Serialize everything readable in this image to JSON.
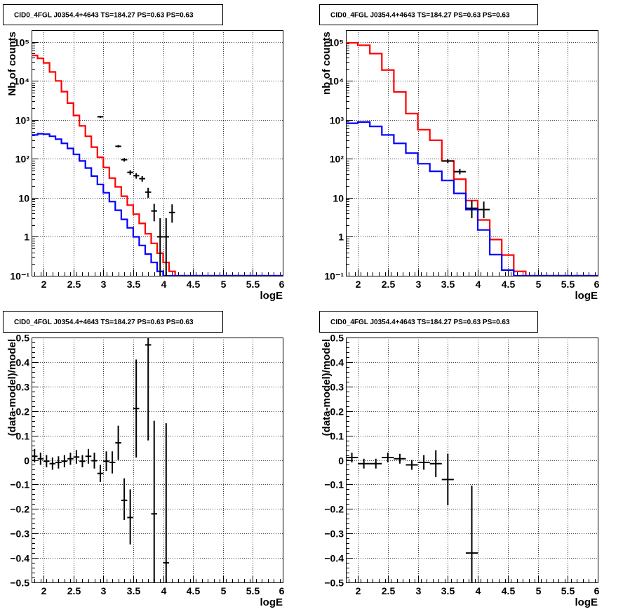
{
  "colors": {
    "data": "#000000",
    "total_model": "#ff0000",
    "component_model": "#0000ff",
    "grid": "#000000"
  },
  "chart_data": [
    {
      "id": "p1",
      "type": "line",
      "title": "CID0_4FGL J0354.4+4643 TS=184.27 PS=0.63 PS=0.63",
      "xlabel": "logE",
      "ylabel": "Nb of counts",
      "yscale": "log",
      "xlim": [
        1.8,
        6.0
      ],
      "ylim": [
        0.1,
        200000
      ],
      "grid": true,
      "x_ticks": [
        2,
        2.5,
        3,
        3.5,
        4,
        4.5,
        5,
        5.5,
        6
      ],
      "x_tick_labels": [
        "2",
        "2.5",
        "3",
        "3.5",
        "4",
        "4.5",
        "5",
        "5.5",
        "6"
      ],
      "y_ticks": [
        0.1,
        1,
        10,
        100,
        1000,
        10000,
        100000
      ],
      "y_tick_labels": [
        "10⁻¹",
        "1",
        "10",
        "10²",
        "10³",
        "10⁴",
        "10⁵"
      ],
      "series": [
        {
          "role": "total_model",
          "style": "step",
          "edges": [
            1.8,
            1.9,
            2.0,
            2.1,
            2.2,
            2.3,
            2.4,
            2.5,
            2.6,
            2.7,
            2.8,
            2.9,
            3.0,
            3.1,
            3.2,
            3.3,
            3.4,
            3.5,
            3.6,
            3.7,
            3.8,
            3.9,
            4.0,
            4.1,
            4.2,
            4.3,
            4.4,
            4.5,
            4.6,
            6.0
          ],
          "values": [
            45000,
            38000,
            29000,
            17000,
            10000,
            5300,
            2700,
            1300,
            700,
            380,
            200,
            110,
            60,
            32,
            19,
            11,
            6.5,
            3.8,
            2.2,
            1.2,
            0.68,
            0.38,
            0.22,
            0.13,
            0.1,
            0.1,
            0.1,
            0.1,
            0.1
          ]
        },
        {
          "role": "component_model",
          "style": "step",
          "edges": [
            1.8,
            1.9,
            2.0,
            2.1,
            2.2,
            2.3,
            2.4,
            2.5,
            2.6,
            2.7,
            2.8,
            2.9,
            3.0,
            3.1,
            3.2,
            3.3,
            3.4,
            3.5,
            3.6,
            3.7,
            3.8,
            3.9,
            4.0,
            4.1,
            4.2,
            4.3,
            4.4,
            4.5,
            4.6,
            6.0
          ],
          "values": [
            410,
            440,
            430,
            380,
            320,
            250,
            185,
            130,
            88,
            58,
            36,
            22,
            13.5,
            8,
            4.8,
            2.8,
            1.7,
            1.0,
            0.6,
            0.36,
            0.22,
            0.13,
            0.1,
            0.1,
            0.1,
            0.1,
            0.1,
            0.1,
            0.1
          ]
        },
        {
          "role": "data",
          "style": "errorbar",
          "points": [
            {
              "x": 2.95,
              "y": 1200,
              "xerr": 0.05,
              "ylo": 1130,
              "yhi": 1270
            },
            {
              "x": 3.25,
              "y": 210,
              "xerr": 0.05,
              "ylo": 195,
              "yhi": 225
            },
            {
              "x": 3.35,
              "y": 95,
              "xerr": 0.05,
              "ylo": 85,
              "yhi": 105
            },
            {
              "x": 3.45,
              "y": 45,
              "xerr": 0.05,
              "ylo": 39,
              "yhi": 51
            },
            {
              "x": 3.55,
              "y": 37,
              "xerr": 0.05,
              "ylo": 31,
              "yhi": 43
            },
            {
              "x": 3.65,
              "y": 31,
              "xerr": 0.05,
              "ylo": 26,
              "yhi": 36
            },
            {
              "x": 3.75,
              "y": 14,
              "xerr": 0.05,
              "ylo": 10,
              "yhi": 18
            },
            {
              "x": 3.85,
              "y": 4.6,
              "xerr": 0.05,
              "ylo": 2.5,
              "yhi": 7
            },
            {
              "x": 3.95,
              "y": 1,
              "xerr": 0.05,
              "ylo": 0.1,
              "yhi": 3
            },
            {
              "x": 4.05,
              "y": 1,
              "xerr": 0.05,
              "ylo": 0.1,
              "yhi": 3
            },
            {
              "x": 4.15,
              "y": 4.2,
              "xerr": 0.05,
              "ylo": 2.3,
              "yhi": 6.8
            }
          ]
        }
      ]
    },
    {
      "id": "p2",
      "type": "line",
      "title": "CID0_4FGL J0354.4+4643 TS=184.27 PS=0.63 PS=0.63",
      "xlabel": "logE",
      "ylabel": "nb of counts",
      "yscale": "log",
      "xlim": [
        1.8,
        6.0
      ],
      "ylim": [
        0.1,
        200000
      ],
      "grid": true,
      "x_ticks": [
        2,
        2.5,
        3,
        3.5,
        4,
        4.5,
        5,
        5.5,
        6
      ],
      "x_tick_labels": [
        "2",
        "2.5",
        "3",
        "3.5",
        "4",
        "4.5",
        "5",
        "5.5",
        "6"
      ],
      "y_ticks": [
        0.1,
        1,
        10,
        100,
        1000,
        10000,
        100000
      ],
      "y_tick_labels": [
        "10⁻¹",
        "1",
        "10",
        "10²",
        "10³",
        "10⁴",
        "10⁵"
      ],
      "series": [
        {
          "role": "total_model",
          "style": "step",
          "edges": [
            1.8,
            2.0,
            2.2,
            2.4,
            2.6,
            2.8,
            3.0,
            3.2,
            3.4,
            3.6,
            3.8,
            4.0,
            4.2,
            4.4,
            4.6,
            4.8,
            6.0
          ],
          "values": [
            95000,
            82000,
            50000,
            19000,
            5200,
            1450,
            560,
            300,
            88,
            30,
            8.5,
            2.7,
            0.85,
            0.34,
            0.13,
            0.1
          ],
          "end_at": 4.8
        },
        {
          "role": "component_model",
          "style": "step",
          "edges": [
            1.8,
            2.0,
            2.2,
            2.4,
            2.6,
            2.8,
            3.0,
            3.2,
            3.4,
            3.6,
            3.8,
            4.0,
            4.2,
            4.4,
            4.6,
            6.0
          ],
          "values": [
            820,
            880,
            680,
            410,
            250,
            140,
            75,
            48,
            28,
            13,
            5,
            1.5,
            0.35,
            0.14,
            0.1
          ]
        },
        {
          "role": "data",
          "style": "errorbar",
          "points": [
            {
              "x": 3.5,
              "y": 88,
              "xerr": 0.1,
              "ylo": 78,
              "yhi": 98
            },
            {
              "x": 3.7,
              "y": 47,
              "xerr": 0.1,
              "ylo": 40,
              "yhi": 55
            },
            {
              "x": 3.9,
              "y": 5.4,
              "xerr": 0.1,
              "ylo": 3,
              "yhi": 8.5
            },
            {
              "x": 4.1,
              "y": 5,
              "xerr": 0.1,
              "ylo": 3,
              "yhi": 8
            }
          ]
        }
      ]
    },
    {
      "id": "p3",
      "type": "scatter",
      "title": "CID0_4FGL J0354.4+4643 TS=184.27 PS=0.63 PS=0.63",
      "xlabel": "logE",
      "ylabel": "(data-model)/model",
      "yscale": "linear",
      "xlim": [
        1.8,
        6.0
      ],
      "ylim": [
        -0.5,
        0.5
      ],
      "grid": true,
      "x_ticks": [
        2,
        2.5,
        3,
        3.5,
        4,
        4.5,
        5,
        5.5,
        6
      ],
      "x_tick_labels": [
        "2",
        "2.5",
        "3",
        "3.5",
        "4",
        "4.5",
        "5",
        "5.5",
        "6"
      ],
      "y_ticks": [
        -0.5,
        -0.4,
        -0.3,
        -0.2,
        -0.1,
        0,
        0.1,
        0.2,
        0.3,
        0.4,
        0.5
      ],
      "y_tick_labels": [
        "−0.5",
        "−0.4",
        "−0.3",
        "−0.2",
        "−0.1",
        "0",
        "0.1",
        "0.2",
        "0.3",
        "0.4",
        "0.5"
      ],
      "series": [
        {
          "role": "data",
          "style": "errorbar",
          "points": [
            {
              "x": 1.85,
              "y": 0.015,
              "xerr": 0.05,
              "ylo": -0.01,
              "yhi": 0.045
            },
            {
              "x": 1.95,
              "y": 0.005,
              "xerr": 0.05,
              "ylo": -0.02,
              "yhi": 0.03
            },
            {
              "x": 2.05,
              "y": -0.005,
              "xerr": 0.05,
              "ylo": -0.03,
              "yhi": 0.02
            },
            {
              "x": 2.15,
              "y": -0.015,
              "xerr": 0.05,
              "ylo": -0.04,
              "yhi": 0.01
            },
            {
              "x": 2.25,
              "y": -0.01,
              "xerr": 0.05,
              "ylo": -0.035,
              "yhi": 0.015
            },
            {
              "x": 2.35,
              "y": -0.005,
              "xerr": 0.05,
              "ylo": -0.03,
              "yhi": 0.02
            },
            {
              "x": 2.45,
              "y": 0.005,
              "xerr": 0.05,
              "ylo": -0.02,
              "yhi": 0.03
            },
            {
              "x": 2.55,
              "y": 0.012,
              "xerr": 0.05,
              "ylo": -0.015,
              "yhi": 0.04
            },
            {
              "x": 2.65,
              "y": -0.005,
              "xerr": 0.05,
              "ylo": -0.03,
              "yhi": 0.02
            },
            {
              "x": 2.75,
              "y": 0.015,
              "xerr": 0.05,
              "ylo": -0.015,
              "yhi": 0.045
            },
            {
              "x": 2.85,
              "y": -0.003,
              "xerr": 0.05,
              "ylo": -0.035,
              "yhi": 0.03
            },
            {
              "x": 2.95,
              "y": -0.055,
              "xerr": 0.05,
              "ylo": -0.09,
              "yhi": -0.02
            },
            {
              "x": 3.05,
              "y": -0.005,
              "xerr": 0.05,
              "ylo": -0.045,
              "yhi": 0.035
            },
            {
              "x": 3.15,
              "y": -0.01,
              "xerr": 0.05,
              "ylo": -0.055,
              "yhi": 0.035
            },
            {
              "x": 3.25,
              "y": 0.07,
              "xerr": 0.05,
              "ylo": 0.0,
              "yhi": 0.14
            },
            {
              "x": 3.35,
              "y": -0.165,
              "xerr": 0.05,
              "ylo": -0.245,
              "yhi": -0.075
            },
            {
              "x": 3.45,
              "y": -0.235,
              "xerr": 0.05,
              "ylo": -0.345,
              "yhi": -0.12
            },
            {
              "x": 3.55,
              "y": 0.21,
              "xerr": 0.05,
              "ylo": 0.01,
              "yhi": 0.41
            },
            {
              "x": 3.75,
              "y": 0.47,
              "xerr": 0.05,
              "ylo": 0.08,
              "yhi": 0.5
            },
            {
              "x": 3.85,
              "y": -0.22,
              "xerr": 0.05,
              "ylo": -0.5,
              "yhi": 0.16
            },
            {
              "x": 4.05,
              "y": -0.42,
              "xerr": 0.05,
              "ylo": -0.5,
              "yhi": 0.15
            }
          ]
        }
      ]
    },
    {
      "id": "p4",
      "type": "scatter",
      "title": "CID0_4FGL J0354.4+4643 TS=184.27 PS=0.63 PS=0.63",
      "xlabel": "logE",
      "ylabel": "(data-model)/model",
      "yscale": "linear",
      "xlim": [
        1.8,
        6.0
      ],
      "ylim": [
        -0.5,
        0.5
      ],
      "grid": true,
      "x_ticks": [
        2,
        2.5,
        3,
        3.5,
        4,
        4.5,
        5,
        5.5,
        6
      ],
      "x_tick_labels": [
        "2",
        "2.5",
        "3",
        "3.5",
        "4",
        "4.5",
        "5",
        "5.5",
        "6"
      ],
      "y_ticks": [
        -0.5,
        -0.4,
        -0.3,
        -0.2,
        -0.1,
        0,
        0.1,
        0.2,
        0.3,
        0.4,
        0.5
      ],
      "y_tick_labels": [
        "−0.5",
        "−0.4",
        "−0.3",
        "−0.2",
        "−0.1",
        "0",
        "0.1",
        "0.2",
        "0.3",
        "0.4",
        "0.5"
      ],
      "series": [
        {
          "role": "data",
          "style": "errorbar",
          "points": [
            {
              "x": 1.9,
              "y": 0.01,
              "xerr": 0.1,
              "ylo": -0.01,
              "yhi": 0.03
            },
            {
              "x": 2.1,
              "y": -0.015,
              "xerr": 0.1,
              "ylo": -0.035,
              "yhi": 0.005
            },
            {
              "x": 2.3,
              "y": -0.015,
              "xerr": 0.1,
              "ylo": -0.035,
              "yhi": 0.005
            },
            {
              "x": 2.5,
              "y": 0.01,
              "xerr": 0.1,
              "ylo": -0.01,
              "yhi": 0.03
            },
            {
              "x": 2.7,
              "y": 0.005,
              "xerr": 0.1,
              "ylo": -0.015,
              "yhi": 0.025
            },
            {
              "x": 2.9,
              "y": -0.02,
              "xerr": 0.1,
              "ylo": -0.04,
              "yhi": 0.0
            },
            {
              "x": 3.1,
              "y": -0.01,
              "xerr": 0.1,
              "ylo": -0.04,
              "yhi": 0.02
            },
            {
              "x": 3.3,
              "y": -0.015,
              "xerr": 0.1,
              "ylo": -0.07,
              "yhi": 0.04
            },
            {
              "x": 3.5,
              "y": -0.08,
              "xerr": 0.1,
              "ylo": -0.185,
              "yhi": 0.025
            },
            {
              "x": 3.9,
              "y": -0.38,
              "xerr": 0.1,
              "ylo": -0.5,
              "yhi": -0.105
            }
          ]
        }
      ]
    }
  ]
}
